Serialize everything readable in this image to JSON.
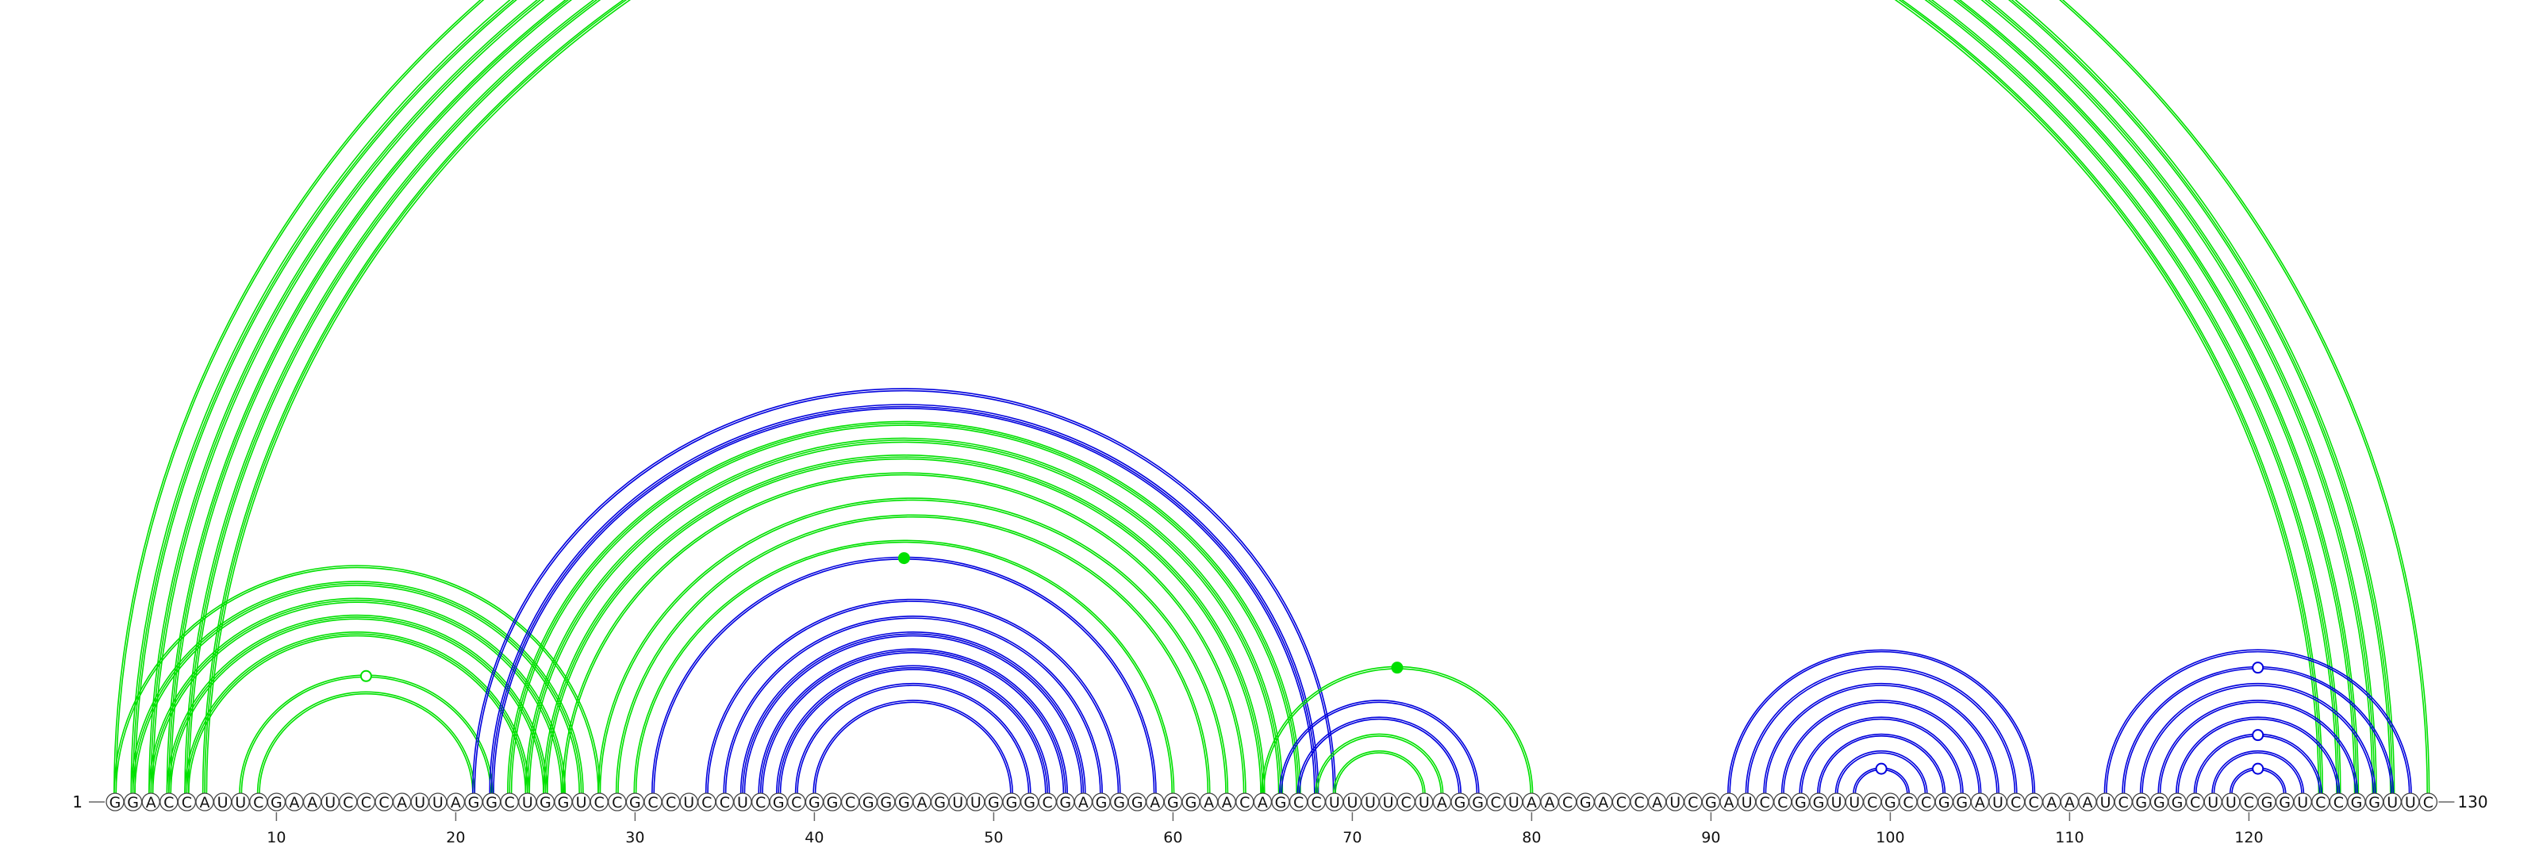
{
  "sequence": "GGACCAUUCGAAUCCCAUUAGGCUGGUCCGCCUCCUCGCGGCGGGAGUUGGGCGAGGGAGGAACAGCCUUUUCUAGGCUAACGACCAUCGAUCCGGUUCGCCGGAUCCAAAUCGGGCUUCGGUCCGGUUC",
  "start_label": "1",
  "end_label": "130",
  "ticks": [
    10,
    20,
    30,
    40,
    50,
    60,
    70,
    80,
    90,
    100,
    110,
    120
  ],
  "colors": {
    "green": "#00e000",
    "blue": "#0000dd",
    "outline": "#444444",
    "line": "#666666"
  },
  "arcs": [
    {
      "color": "green",
      "i": 1,
      "j": 130,
      "count": 2,
      "marker": "open"
    },
    {
      "color": "green",
      "i": 2,
      "j": 128,
      "count": 3
    },
    {
      "color": "green",
      "i": 3,
      "j": 127,
      "count": 3
    },
    {
      "color": "green",
      "i": 4,
      "j": 126,
      "count": 3
    },
    {
      "color": "green",
      "i": 5,
      "j": 125,
      "count": 3
    },
    {
      "color": "green",
      "i": 6,
      "j": 124,
      "count": 3
    },
    {
      "color": "green",
      "i": 1,
      "j": 28,
      "count": 2
    },
    {
      "color": "green",
      "i": 2,
      "j": 27,
      "count": 3
    },
    {
      "color": "green",
      "i": 3,
      "j": 26,
      "count": 3
    },
    {
      "color": "green",
      "i": 4,
      "j": 25,
      "count": 3
    },
    {
      "color": "green",
      "i": 5,
      "j": 24,
      "count": 3
    },
    {
      "color": "green",
      "i": 8,
      "j": 22,
      "count": 2,
      "marker": "open"
    },
    {
      "color": "green",
      "i": 9,
      "j": 21,
      "count": 2
    },
    {
      "color": "blue",
      "i": 21,
      "j": 69,
      "count": 2
    },
    {
      "color": "blue",
      "i": 22,
      "j": 68,
      "count": 3
    },
    {
      "color": "green",
      "i": 23,
      "j": 67,
      "count": 3
    },
    {
      "color": "green",
      "i": 24,
      "j": 66,
      "count": 3
    },
    {
      "color": "green",
      "i": 25,
      "j": 65,
      "count": 3
    },
    {
      "color": "green",
      "i": 26,
      "j": 64,
      "count": 2
    },
    {
      "color": "green",
      "i": 28,
      "j": 63,
      "count": 2
    },
    {
      "color": "green",
      "i": 29,
      "j": 62,
      "count": 2
    },
    {
      "color": "green",
      "i": 30,
      "j": 60,
      "count": 2
    },
    {
      "color": "blue",
      "i": 31,
      "j": 59,
      "count": 2,
      "marker": "filled-green"
    },
    {
      "color": "blue",
      "i": 34,
      "j": 57,
      "count": 2
    },
    {
      "color": "blue",
      "i": 35,
      "j": 56,
      "count": 2
    },
    {
      "color": "blue",
      "i": 36,
      "j": 55,
      "count": 3
    },
    {
      "color": "blue",
      "i": 37,
      "j": 54,
      "count": 3
    },
    {
      "color": "blue",
      "i": 38,
      "j": 53,
      "count": 3
    },
    {
      "color": "blue",
      "i": 39,
      "j": 52,
      "count": 2
    },
    {
      "color": "blue",
      "i": 40,
      "j": 51,
      "count": 2
    },
    {
      "color": "blue",
      "i": 66,
      "j": 77,
      "count": 2
    },
    {
      "color": "green",
      "i": 65,
      "j": 80,
      "count": 2,
      "marker": "filled-green"
    },
    {
      "color": "blue",
      "i": 67,
      "j": 76,
      "count": 2
    },
    {
      "color": "green",
      "i": 68,
      "j": 75,
      "count": 2
    },
    {
      "color": "green",
      "i": 69,
      "j": 74,
      "count": 2
    },
    {
      "color": "blue",
      "i": 91,
      "j": 108,
      "count": 2
    },
    {
      "color": "blue",
      "i": 92,
      "j": 107,
      "count": 2
    },
    {
      "color": "blue",
      "i": 93,
      "j": 106,
      "count": 2
    },
    {
      "color": "blue",
      "i": 94,
      "j": 105,
      "count": 2
    },
    {
      "color": "blue",
      "i": 95,
      "j": 104,
      "count": 2
    },
    {
      "color": "blue",
      "i": 96,
      "j": 103,
      "count": 2
    },
    {
      "color": "blue",
      "i": 97,
      "j": 102,
      "count": 2
    },
    {
      "color": "blue",
      "i": 98,
      "j": 101,
      "count": 2,
      "marker": "open-blue"
    },
    {
      "color": "blue",
      "i": 112,
      "j": 129,
      "count": 2
    },
    {
      "color": "blue",
      "i": 113,
      "j": 128,
      "count": 2,
      "marker": "open-blue"
    },
    {
      "color": "blue",
      "i": 114,
      "j": 127,
      "count": 2
    },
    {
      "color": "blue",
      "i": 115,
      "j": 126,
      "count": 2
    },
    {
      "color": "blue",
      "i": 116,
      "j": 125,
      "count": 2
    },
    {
      "color": "blue",
      "i": 117,
      "j": 124,
      "count": 2,
      "marker": "open-blue"
    },
    {
      "color": "blue",
      "i": 118,
      "j": 123,
      "count": 2
    },
    {
      "color": "blue",
      "i": 119,
      "j": 122,
      "count": 2,
      "marker": "open-blue"
    }
  ]
}
